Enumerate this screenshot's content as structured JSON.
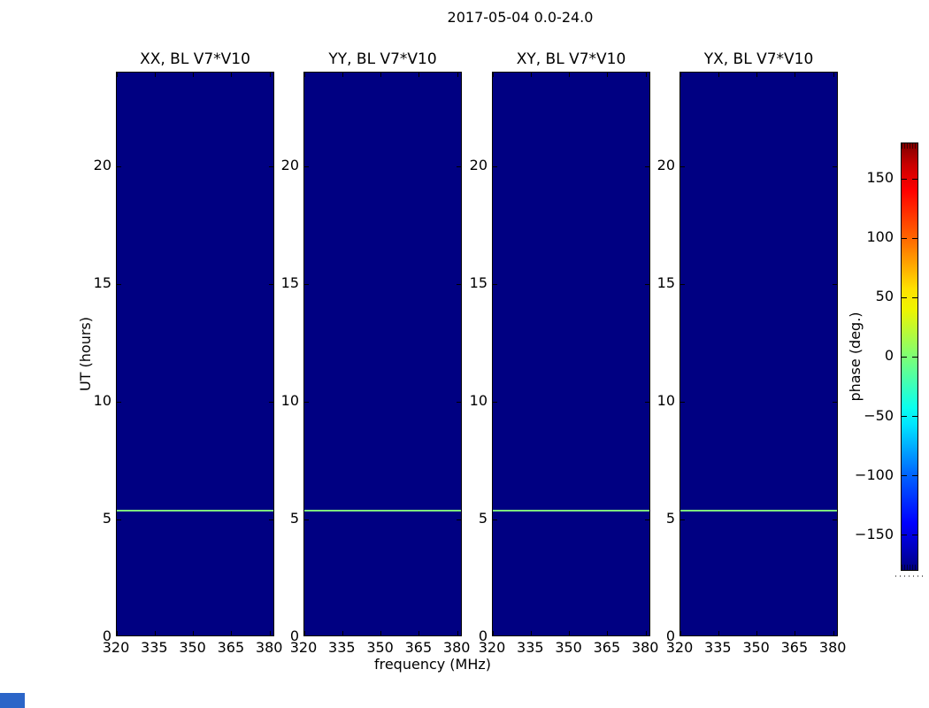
{
  "figure": {
    "suptitle": "2017-05-04 0.0-24.0",
    "xlabel": "frequency (MHz)",
    "ylabel": "UT (hours)",
    "background_color": "#ffffff"
  },
  "panels": [
    {
      "id": "xx",
      "title": "XX, BL V7*V10"
    },
    {
      "id": "yy",
      "title": "YY, BL V7*V10"
    },
    {
      "id": "xy",
      "title": "XY, BL V7*V10"
    },
    {
      "id": "yx",
      "title": "YX, BL V7*V10"
    }
  ],
  "axes": {
    "x_tick_labels": [
      "320",
      "335",
      "350",
      "365",
      "380"
    ],
    "y_tick_labels": [
      "20",
      "15",
      "10",
      "5",
      "0"
    ]
  },
  "colorbar": {
    "label": "phase (deg.)",
    "tick_labels": [
      "150",
      "100",
      "50",
      "0",
      "−50",
      "−100",
      "−150"
    ],
    "colormap": "jet"
  },
  "colors": {
    "heatmap_background": "#000082",
    "feature_line": "#7de87f",
    "axes_edge": "#000000",
    "text": "#000000",
    "taskbar_fragment": "#2b65c8"
  },
  "chart_data": {
    "type": "heatmap",
    "title": "2017-05-04 0.0-24.0",
    "xlabel": "frequency (MHz)",
    "ylabel": "UT (hours)",
    "panels": [
      {
        "title": "XX, BL V7*V10",
        "polarization": "XX",
        "baseline": "V7*V10"
      },
      {
        "title": "YY, BL V7*V10",
        "polarization": "YY",
        "baseline": "V7*V10"
      },
      {
        "title": "XY, BL V7*V10",
        "polarization": "XY",
        "baseline": "V7*V10"
      },
      {
        "title": "YX, BL V7*V10",
        "polarization": "YX",
        "baseline": "V7*V10"
      }
    ],
    "x_range_mhz": [
      320,
      382
    ],
    "x_tick_values": [
      320,
      335,
      350,
      365,
      380
    ],
    "y_range_hours": [
      0,
      24
    ],
    "y_tick_values": [
      0,
      5,
      10,
      15,
      20
    ],
    "colorbar": {
      "label": "phase (deg.)",
      "range_deg": [
        -180,
        180
      ],
      "tick_values": [
        -150,
        -100,
        -50,
        0,
        50,
        100,
        150
      ],
      "colormap": "jet",
      "legend_position": "right"
    },
    "grid": false,
    "content_summary": {
      "background_phase_deg": -180,
      "feature_line": {
        "ut_hours": 5.4,
        "phase_deg": 0,
        "extent": "full frequency range, present in all four panels"
      }
    }
  }
}
